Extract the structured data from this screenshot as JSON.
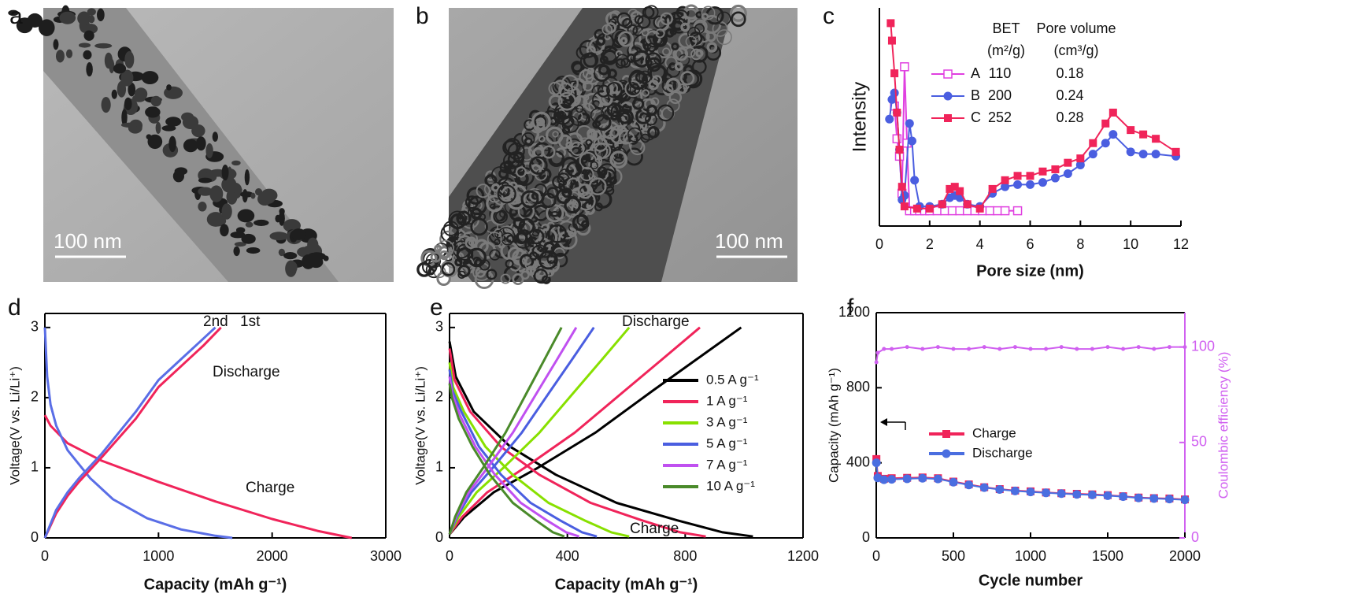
{
  "images": [
    {
      "label": "a",
      "scale_bar": "100 nm"
    },
    {
      "label": "b",
      "scale_bar": "100 nm"
    }
  ],
  "chart_data": [
    {
      "type": "line",
      "panel": "c",
      "xlabel": "Pore size (nm)",
      "ylabel": "Intensity",
      "xlim": [
        0,
        12
      ],
      "xticks": [
        0,
        2,
        4,
        6,
        8,
        10,
        12
      ],
      "ylim": [
        0,
        100
      ],
      "legend_table": {
        "headers": [
          "BET",
          "Pore volume"
        ],
        "units": [
          "(m²/g)",
          "(cm³/g)"
        ],
        "rows": [
          [
            110,
            0.18
          ],
          [
            200,
            0.24
          ],
          [
            252,
            0.28
          ]
        ]
      },
      "series": [
        {
          "name": "A",
          "color": "#e040e0",
          "marker": "square-open",
          "x": [
            0.6,
            0.7,
            0.8,
            0.9,
            1.0,
            1.1,
            1.2,
            1.4,
            1.6,
            1.8,
            2.0,
            2.3,
            2.6,
            2.9,
            3.2,
            3.5,
            3.8,
            4.1,
            4.4,
            4.7,
            5.0,
            5.5
          ],
          "values": [
            55,
            40,
            32,
            15,
            73,
            38,
            7,
            7,
            7,
            7,
            7,
            7,
            7,
            7,
            7,
            7,
            7,
            7,
            7,
            7,
            7,
            7
          ]
        },
        {
          "name": "B",
          "color": "#4a5ee0",
          "marker": "circle",
          "x": [
            0.4,
            0.5,
            0.6,
            0.7,
            0.8,
            0.9,
            1.0,
            1.2,
            1.3,
            1.4,
            1.6,
            2.0,
            2.5,
            2.8,
            3.0,
            3.2,
            3.5,
            4.0,
            4.5,
            5.0,
            5.5,
            6.0,
            6.5,
            7.0,
            7.5,
            8.0,
            8.5,
            9.0,
            9.3,
            10.0,
            10.5,
            11.0,
            11.8
          ],
          "values": [
            49,
            58,
            61,
            52,
            35,
            12,
            14,
            47,
            39,
            21,
            9,
            9,
            10,
            13,
            14,
            13,
            10,
            9,
            15,
            18,
            19,
            19,
            20,
            22,
            24,
            28,
            33,
            38,
            42,
            34,
            33,
            33,
            32
          ]
        },
        {
          "name": "C",
          "color": "#f0245a",
          "marker": "square",
          "x": [
            0.45,
            0.5,
            0.6,
            0.7,
            0.8,
            0.9,
            1.0,
            1.5,
            2.0,
            2.5,
            2.8,
            3.0,
            3.2,
            3.5,
            4.0,
            4.5,
            5.0,
            5.5,
            6.0,
            6.5,
            7.0,
            7.5,
            8.0,
            8.5,
            9.0,
            9.3,
            10.0,
            10.5,
            11.0,
            11.8
          ],
          "values": [
            93,
            85,
            70,
            52,
            35,
            18,
            9,
            8,
            8,
            10,
            17,
            18,
            16,
            10,
            8,
            17,
            21,
            23,
            23,
            25,
            26,
            29,
            31,
            38,
            47,
            52,
            44,
            42,
            40,
            34
          ]
        }
      ]
    },
    {
      "type": "line",
      "panel": "d",
      "xlabel": "Capacity (mAh g⁻¹)",
      "ylabel": "Voltage(V vs. Li/Li⁺)",
      "xlim": [
        0,
        3000
      ],
      "xticks": [
        0,
        1000,
        2000,
        3000
      ],
      "ylim": [
        0,
        3.2
      ],
      "yticks": [
        0,
        1,
        2,
        3
      ],
      "annotations": [
        "2nd",
        "1st",
        "Discharge",
        "Charge"
      ],
      "series": [
        {
          "color": "#f0245a",
          "x": [
            0,
            50,
            200,
            500,
            1000,
            1500,
            2000,
            2400,
            2700
          ],
          "values": [
            1.75,
            1.6,
            1.35,
            1.1,
            0.8,
            0.52,
            0.27,
            0.1,
            0
          ]
        },
        {
          "color": "#5a6ee6",
          "x": [
            0,
            20,
            50,
            100,
            200,
            400,
            600,
            900,
            1200,
            1500,
            1650
          ],
          "values": [
            3.0,
            2.3,
            1.9,
            1.6,
            1.25,
            0.85,
            0.55,
            0.28,
            0.12,
            0.03,
            0
          ]
        },
        {
          "color": "#f0245a",
          "x": [
            0,
            100,
            200,
            300,
            500,
            800,
            1000,
            1200,
            1400,
            1550
          ],
          "values": [
            0,
            0.35,
            0.6,
            0.8,
            1.15,
            1.7,
            2.15,
            2.45,
            2.75,
            3.0
          ]
        },
        {
          "color": "#5a6ee6",
          "x": [
            0,
            100,
            200,
            300,
            500,
            800,
            1000,
            1200,
            1400,
            1500
          ],
          "values": [
            0,
            0.4,
            0.65,
            0.85,
            1.2,
            1.8,
            2.25,
            2.55,
            2.85,
            3.0
          ]
        }
      ]
    },
    {
      "type": "line",
      "panel": "e",
      "xlabel": "Capacity (mAh g⁻¹)",
      "ylabel": "Voltage(V vs. Li/Li⁺)",
      "xlim": [
        0,
        1200
      ],
      "xticks": [
        0,
        400,
        800,
        1200
      ],
      "ylim": [
        0,
        3.2
      ],
      "yticks": [
        0,
        1,
        2,
        3
      ],
      "annotations": [
        "Discharge",
        "Charge"
      ],
      "series": [
        {
          "name": "0.5 A g⁻¹",
          "color": "#000000",
          "x": [
            0,
            50,
            150,
            300,
            495,
            690,
            840,
            990
          ],
          "values": [
            0.05,
            0.3,
            0.65,
            1.0,
            1.5,
            2.1,
            2.55,
            3.0
          ],
          "discharge": {
            "x": [
              0,
              21,
              82,
              206,
              361,
              567,
              773,
              927,
              1030
            ],
            "values": [
              2.8,
              2.3,
              1.8,
              1.3,
              0.9,
              0.5,
              0.25,
              0.08,
              0.02
            ]
          }
        },
        {
          "name": "1 A g⁻¹",
          "color": "#f0245a",
          "x": [
            0,
            43,
            128,
            255,
            425,
            595,
            723,
            850
          ],
          "values": [
            0.05,
            0.3,
            0.65,
            1.0,
            1.5,
            2.1,
            2.55,
            3.0
          ],
          "discharge": {
            "x": [
              0,
              17,
              70,
              174,
              305,
              479,
              653,
              783,
              870
            ],
            "values": [
              2.7,
              2.25,
              1.8,
              1.3,
              0.9,
              0.5,
              0.25,
              0.08,
              0.02
            ]
          }
        },
        {
          "name": "3 A g⁻¹",
          "color": "#88e000",
          "x": [
            0,
            31,
            92,
            183,
            305,
            427,
            519,
            610
          ],
          "values": [
            0.05,
            0.3,
            0.65,
            1.0,
            1.5,
            2.1,
            2.55,
            3.0
          ],
          "discharge": {
            "x": [
              0,
              12,
              49,
              122,
              214,
              336,
              458,
              549,
              610
            ],
            "values": [
              2.5,
              2.15,
              1.8,
              1.3,
              0.9,
              0.5,
              0.25,
              0.08,
              0.02
            ]
          }
        },
        {
          "name": "5 A g⁻¹",
          "color": "#4a5ee0",
          "x": [
            0,
            25,
            74,
            147,
            245,
            343,
            417,
            490
          ],
          "values": [
            0.05,
            0.3,
            0.65,
            1.0,
            1.5,
            2.1,
            2.55,
            3.0
          ],
          "discharge": {
            "x": [
              0,
              10,
              40,
              100,
              175,
              275,
              375,
              450,
              500
            ],
            "values": [
              2.4,
              2.1,
              1.8,
              1.3,
              0.9,
              0.5,
              0.25,
              0.08,
              0.02
            ]
          }
        },
        {
          "name": "7 A g⁻¹",
          "color": "#c050f0",
          "x": [
            0,
            22,
            65,
            129,
            215,
            301,
            366,
            430
          ],
          "values": [
            0.05,
            0.3,
            0.65,
            1.0,
            1.5,
            2.1,
            2.55,
            3.0
          ],
          "discharge": {
            "x": [
              0,
              9,
              35,
              88,
              154,
              242,
              330,
              396,
              440
            ],
            "values": [
              2.3,
              2.05,
              1.75,
              1.3,
              0.9,
              0.5,
              0.25,
              0.08,
              0.02
            ]
          }
        },
        {
          "name": "10 A g⁻¹",
          "color": "#4a8a2a",
          "x": [
            0,
            19,
            57,
            114,
            190,
            266,
            323,
            380
          ],
          "values": [
            0.05,
            0.3,
            0.65,
            1.0,
            1.5,
            2.1,
            2.55,
            3.0
          ],
          "discharge": {
            "x": [
              0,
              8,
              31,
              78,
              137,
              215,
              293,
              351,
              390
            ],
            "values": [
              2.2,
              2.0,
              1.7,
              1.3,
              0.9,
              0.5,
              0.25,
              0.08,
              0.02
            ]
          }
        }
      ]
    },
    {
      "type": "line",
      "panel": "f",
      "xlabel": "Cycle number",
      "ylabel": "Capacity (mAh g⁻¹)",
      "y2label": "Coulombic efficiency (%)",
      "xlim": [
        0,
        2000
      ],
      "xticks": [
        0,
        500,
        1000,
        1500,
        2000
      ],
      "ylim": [
        0,
        1200
      ],
      "yticks": [
        0,
        400,
        800,
        1200
      ],
      "y2lim": [
        0,
        118
      ],
      "y2ticks": [
        0,
        50,
        100
      ],
      "series": [
        {
          "name": "Charge",
          "color": "#f0245a",
          "marker": "square",
          "x": [
            1,
            10,
            50,
            100,
            200,
            300,
            400,
            500,
            600,
            700,
            800,
            900,
            1000,
            1100,
            1200,
            1300,
            1400,
            1500,
            1600,
            1700,
            1800,
            1900,
            2000
          ],
          "values": [
            420,
            330,
            315,
            318,
            320,
            322,
            318,
            300,
            285,
            270,
            260,
            252,
            248,
            242,
            238,
            235,
            232,
            228,
            222,
            215,
            212,
            210,
            205
          ]
        },
        {
          "name": "Discharge",
          "color": "#4a6ee0",
          "marker": "circle",
          "x": [
            1,
            10,
            50,
            100,
            200,
            300,
            400,
            500,
            600,
            700,
            800,
            900,
            1000,
            1100,
            1200,
            1300,
            1400,
            1500,
            1600,
            1700,
            1800,
            1900,
            2000
          ],
          "values": [
            400,
            320,
            310,
            312,
            315,
            318,
            314,
            297,
            282,
            268,
            258,
            250,
            245,
            240,
            236,
            232,
            229,
            225,
            220,
            213,
            210,
            207,
            203
          ]
        },
        {
          "color": "#d060f0",
          "marker": "dot",
          "axis": "y2",
          "x": [
            1,
            10,
            50,
            100,
            200,
            300,
            400,
            500,
            600,
            700,
            800,
            900,
            1000,
            1100,
            1200,
            1300,
            1400,
            1500,
            1600,
            1700,
            1800,
            1900,
            2000
          ],
          "values": [
            92,
            97,
            99,
            99,
            100,
            99,
            100,
            99,
            99,
            100,
            99,
            100,
            99,
            99,
            100,
            99,
            99,
            100,
            99,
            100,
            99,
            100,
            100
          ]
        }
      ]
    }
  ]
}
